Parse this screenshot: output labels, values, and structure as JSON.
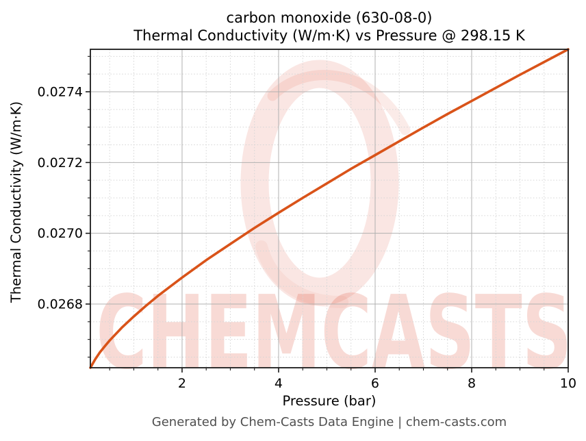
{
  "chart_data": {
    "type": "line",
    "title_line1": "carbon monoxide (630-08-0)",
    "title_line2": "Thermal Conductivity (W/m·K) vs Pressure @ 298.15 K",
    "xlabel": "Pressure (bar)",
    "ylabel": "Thermal Conductivity (W/m·K)",
    "xlim": [
      0.1,
      10
    ],
    "ylim": [
      0.02662,
      0.02752
    ],
    "x_major_ticks": [
      2,
      4,
      6,
      8,
      10
    ],
    "x_tick_labels": [
      "2",
      "4",
      "6",
      "8",
      "10"
    ],
    "x_minor_step": 0.5,
    "y_major_ticks": [
      0.0268,
      0.027,
      0.0272,
      0.0274
    ],
    "y_tick_labels": [
      "0.0268",
      "0.0270",
      "0.0272",
      "0.0274"
    ],
    "y_minor_step": 5e-05,
    "grid": {
      "major": true,
      "minor": true
    },
    "legend": "none",
    "series": [
      {
        "name": "thermal conductivity of carbon monoxide @ 298.15 K",
        "color": "#d95319",
        "x": [
          0.1,
          0.2,
          0.3,
          0.4,
          0.5,
          0.75,
          1.0,
          1.25,
          1.5,
          2.0,
          2.5,
          3.0,
          3.5,
          4.0,
          4.5,
          5.0,
          5.5,
          6.0,
          6.5,
          7.0,
          7.5,
          8.0,
          8.5,
          9.0,
          9.5,
          10.0
        ],
        "y": [
          0.02662,
          0.026644,
          0.026664,
          0.026681,
          0.026697,
          0.026733,
          0.026765,
          0.026795,
          0.026823,
          0.026875,
          0.026924,
          0.02697,
          0.027015,
          0.027058,
          0.0271,
          0.027141,
          0.027182,
          0.027221,
          0.02726,
          0.027299,
          0.027337,
          0.027374,
          0.027411,
          0.027448,
          0.027484,
          0.02752
        ]
      }
    ]
  },
  "watermark": {
    "text": "CHEMCASTS",
    "logo": "brush-ring-logo",
    "color": "#e0503a"
  },
  "footer": {
    "text": "Generated by Chem-Casts Data Engine | chem-casts.com"
  }
}
